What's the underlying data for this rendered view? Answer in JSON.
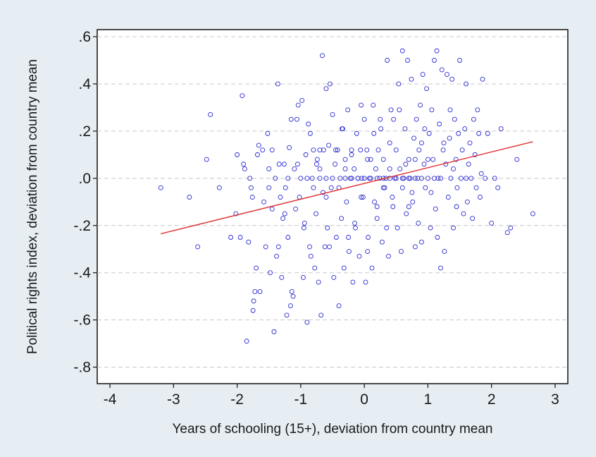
{
  "chart_data": {
    "type": "scatter",
    "title": "",
    "xlabel": "Years of schooling (15+), deviation from country mean",
    "ylabel": "Political rights index, deviation from country mean",
    "xlim": [
      -4.2,
      3.2
    ],
    "ylim": [
      -0.87,
      0.63
    ],
    "xticks": [
      -4,
      -3,
      -2,
      -1,
      0,
      1,
      2,
      3
    ],
    "xtick_labels": [
      "-4",
      "-3",
      "-2",
      "-1",
      "0",
      "1",
      "2",
      "3"
    ],
    "yticks": [
      0.6,
      0.4,
      0.2,
      0.0,
      -0.2,
      -0.4,
      -0.6,
      -0.8
    ],
    "ytick_labels": [
      ".6",
      ".4",
      ".2",
      ".0",
      "-.2",
      "-.4",
      "-.6",
      "-.8"
    ],
    "grid": "horizontal dashed",
    "colors": {
      "points": "#2b2bd0",
      "fit_line": "#e03030",
      "background": "#e6eef3",
      "plot_area": "#ffffff"
    },
    "fit_line": {
      "x": [
        -3.2,
        2.65
      ],
      "y": [
        -0.235,
        0.155
      ]
    },
    "points": [
      [
        -3.2,
        -0.04
      ],
      [
        -2.75,
        -0.08
      ],
      [
        -2.62,
        -0.29
      ],
      [
        -2.48,
        0.08
      ],
      [
        -2.42,
        0.27
      ],
      [
        -2.28,
        -0.04
      ],
      [
        -2.1,
        -0.25
      ],
      [
        -2.02,
        -0.15
      ],
      [
        -2.0,
        0.1
      ],
      [
        -1.95,
        -0.25
      ],
      [
        -1.92,
        0.35
      ],
      [
        -1.9,
        0.06
      ],
      [
        -1.88,
        0.04
      ],
      [
        -1.85,
        -0.69
      ],
      [
        -1.82,
        -0.27
      ],
      [
        -1.8,
        0.0
      ],
      [
        -1.78,
        -0.04
      ],
      [
        -1.76,
        -0.08
      ],
      [
        -1.75,
        -0.56
      ],
      [
        -1.74,
        -0.52
      ],
      [
        -1.72,
        -0.48
      ],
      [
        -1.7,
        -0.38
      ],
      [
        -1.68,
        0.1
      ],
      [
        -1.66,
        0.14
      ],
      [
        -1.64,
        -0.48
      ],
      [
        -1.6,
        0.12
      ],
      [
        -1.58,
        -0.1
      ],
      [
        -1.55,
        -0.29
      ],
      [
        -1.52,
        0.19
      ],
      [
        -1.5,
        0.04
      ],
      [
        -1.48,
        -0.4
      ],
      [
        -1.45,
        -0.13
      ],
      [
        -1.42,
        -0.65
      ],
      [
        -1.4,
        0.0
      ],
      [
        -1.38,
        -0.33
      ],
      [
        -1.36,
        0.4
      ],
      [
        -1.34,
        0.06
      ],
      [
        -1.32,
        -0.08
      ],
      [
        -1.3,
        -0.42
      ],
      [
        -1.28,
        -0.17
      ],
      [
        -1.26,
        0.06
      ],
      [
        -1.24,
        -0.04
      ],
      [
        -1.22,
        -0.58
      ],
      [
        -1.2,
        -0.25
      ],
      [
        -1.18,
        0.13
      ],
      [
        -1.16,
        -0.54
      ],
      [
        -1.14,
        -0.48
      ],
      [
        -1.12,
        -0.5
      ],
      [
        -1.1,
        0.04
      ],
      [
        -1.08,
        -0.13
      ],
      [
        -1.06,
        0.25
      ],
      [
        -1.04,
        0.31
      ],
      [
        -1.02,
        -0.08
      ],
      [
        -1.0,
        0.0
      ],
      [
        -0.98,
        0.33
      ],
      [
        -0.96,
        -0.42
      ],
      [
        -0.94,
        -0.19
      ],
      [
        -0.92,
        0.1
      ],
      [
        -0.9,
        -0.61
      ],
      [
        -0.88,
        0.23
      ],
      [
        -0.86,
        -0.29
      ],
      [
        -0.84,
        -0.33
      ],
      [
        -0.82,
        0.0
      ],
      [
        -0.8,
        0.12
      ],
      [
        -0.78,
        -0.38
      ],
      [
        -0.76,
        -0.15
      ],
      [
        -0.74,
        0.08
      ],
      [
        -0.72,
        -0.44
      ],
      [
        -0.7,
        0.04
      ],
      [
        -0.68,
        -0.58
      ],
      [
        -0.66,
        0.52
      ],
      [
        -0.64,
        0.12
      ],
      [
        -0.62,
        -0.29
      ],
      [
        -0.6,
        0.38
      ],
      [
        -0.58,
        -0.21
      ],
      [
        -0.56,
        0.14
      ],
      [
        -0.54,
        0.4
      ],
      [
        -0.52,
        -0.04
      ],
      [
        -0.5,
        0.27
      ],
      [
        -0.48,
        -0.42
      ],
      [
        -0.46,
        0.06
      ],
      [
        -0.44,
        -0.25
      ],
      [
        -0.42,
        0.12
      ],
      [
        -0.4,
        -0.54
      ],
      [
        -0.38,
        0.0
      ],
      [
        -0.36,
        -0.17
      ],
      [
        -0.34,
        0.21
      ],
      [
        -0.32,
        -0.38
      ],
      [
        -0.3,
        0.08
      ],
      [
        -0.28,
        -0.1
      ],
      [
        -0.26,
        0.29
      ],
      [
        -0.24,
        -0.31
      ],
      [
        -0.22,
        0.0
      ],
      [
        -0.2,
        0.1
      ],
      [
        -0.18,
        -0.44
      ],
      [
        -0.16,
        0.04
      ],
      [
        -0.14,
        -0.21
      ],
      [
        -0.12,
        0.19
      ],
      [
        -0.1,
        0.0
      ],
      [
        -0.08,
        -0.33
      ],
      [
        -0.06,
        0.12
      ],
      [
        -0.04,
        0.0
      ],
      [
        -0.02,
        -0.08
      ],
      [
        0.0,
        0.0
      ],
      [
        0.0,
        0.25
      ],
      [
        0.02,
        -0.44
      ],
      [
        0.04,
        0.12
      ],
      [
        0.06,
        -0.25
      ],
      [
        0.08,
        0.0
      ],
      [
        0.1,
        0.08
      ],
      [
        0.12,
        -0.38
      ],
      [
        0.14,
        0.31
      ],
      [
        0.16,
        -0.1
      ],
      [
        0.18,
        0.04
      ],
      [
        0.2,
        -0.17
      ],
      [
        0.22,
        0.12
      ],
      [
        0.24,
        0.0
      ],
      [
        0.26,
        0.21
      ],
      [
        0.28,
        -0.27
      ],
      [
        0.3,
        0.08
      ],
      [
        0.32,
        -0.04
      ],
      [
        0.34,
        0.0
      ],
      [
        0.36,
        0.5
      ],
      [
        0.38,
        -0.33
      ],
      [
        0.4,
        0.15
      ],
      [
        0.42,
        0.29
      ],
      [
        0.44,
        -0.08
      ],
      [
        0.46,
        0.25
      ],
      [
        0.48,
        0.0
      ],
      [
        0.5,
        0.12
      ],
      [
        0.52,
        -0.21
      ],
      [
        0.54,
        0.4
      ],
      [
        0.56,
        0.04
      ],
      [
        0.58,
        -0.31
      ],
      [
        0.6,
        0.54
      ],
      [
        0.62,
        0.0
      ],
      [
        0.64,
        0.21
      ],
      [
        0.66,
        -0.15
      ],
      [
        0.68,
        0.5
      ],
      [
        0.7,
        0.08
      ],
      [
        0.72,
        0.0
      ],
      [
        0.74,
        0.42
      ],
      [
        0.76,
        -0.1
      ],
      [
        0.78,
        0.17
      ],
      [
        0.8,
        -0.29
      ],
      [
        0.82,
        0.25
      ],
      [
        0.84,
        0.0
      ],
      [
        0.86,
        0.12
      ],
      [
        0.88,
        0.31
      ],
      [
        0.9,
        -0.27
      ],
      [
        0.92,
        0.44
      ],
      [
        0.94,
        0.06
      ],
      [
        0.96,
        -0.04
      ],
      [
        0.98,
        0.38
      ],
      [
        1.0,
        0.0
      ],
      [
        1.02,
        0.19
      ],
      [
        1.04,
        -0.21
      ],
      [
        1.06,
        0.29
      ],
      [
        1.08,
        0.08
      ],
      [
        1.1,
        0.5
      ],
      [
        1.12,
        -0.13
      ],
      [
        1.14,
        0.54
      ],
      [
        1.16,
        0.0
      ],
      [
        1.18,
        0.23
      ],
      [
        1.2,
        -0.38
      ],
      [
        1.22,
        0.46
      ],
      [
        1.24,
        0.12
      ],
      [
        1.26,
        -0.31
      ],
      [
        1.28,
        0.06
      ],
      [
        1.3,
        0.44
      ],
      [
        1.32,
        -0.08
      ],
      [
        1.34,
        0.17
      ],
      [
        1.36,
        0.0
      ],
      [
        1.38,
        0.42
      ],
      [
        1.4,
        -0.21
      ],
      [
        1.42,
        0.25
      ],
      [
        1.44,
        0.08
      ],
      [
        1.46,
        -0.04
      ],
      [
        1.48,
        0.19
      ],
      [
        1.5,
        0.5
      ],
      [
        1.52,
        0.0
      ],
      [
        1.54,
        0.12
      ],
      [
        1.56,
        -0.15
      ],
      [
        1.58,
        0.21
      ],
      [
        1.6,
        0.4
      ],
      [
        1.62,
        -0.1
      ],
      [
        1.64,
        0.06
      ],
      [
        1.66,
        0.15
      ],
      [
        1.68,
        0.0
      ],
      [
        1.7,
        -0.17
      ],
      [
        1.72,
        0.25
      ],
      [
        1.74,
        0.1
      ],
      [
        1.76,
        -0.04
      ],
      [
        1.78,
        0.29
      ],
      [
        1.8,
        0.19
      ],
      [
        1.82,
        -0.08
      ],
      [
        1.84,
        0.02
      ],
      [
        1.86,
        0.42
      ],
      [
        1.9,
        0.0
      ],
      [
        1.94,
        0.19
      ],
      [
        2.0,
        -0.19
      ],
      [
        2.05,
        0.0
      ],
      [
        2.1,
        -0.04
      ],
      [
        2.15,
        0.21
      ],
      [
        2.25,
        -0.23
      ],
      [
        2.3,
        -0.21
      ],
      [
        2.4,
        0.08
      ],
      [
        2.65,
        -0.15
      ],
      [
        -0.3,
        0.0
      ],
      [
        -0.2,
        0.0
      ],
      [
        -0.1,
        0.0
      ],
      [
        0.1,
        0.0
      ],
      [
        0.2,
        0.0
      ],
      [
        0.3,
        0.0
      ],
      [
        0.4,
        0.0
      ],
      [
        0.5,
        0.0
      ],
      [
        0.6,
        0.0
      ],
      [
        0.7,
        0.0
      ],
      [
        0.8,
        0.0
      ],
      [
        0.9,
        0.0
      ],
      [
        -0.5,
        0.0
      ],
      [
        -0.6,
        0.0
      ],
      [
        -0.7,
        0.0
      ],
      [
        -0.9,
        0.0
      ],
      [
        1.1,
        0.0
      ],
      [
        1.2,
        0.0
      ],
      [
        -0.3,
        0.04
      ],
      [
        0.3,
        -0.04
      ],
      [
        -0.4,
        -0.04
      ],
      [
        0.4,
        0.04
      ],
      [
        0.6,
        -0.04
      ],
      [
        -0.6,
        -0.08
      ],
      [
        0.8,
        0.08
      ],
      [
        1.0,
        0.08
      ],
      [
        -0.8,
        -0.04
      ],
      [
        -1.2,
        0.0
      ],
      [
        -1.5,
        -0.04
      ],
      [
        1.4,
        0.04
      ],
      [
        1.6,
        0.0
      ],
      [
        -0.2,
        0.12
      ],
      [
        0.2,
        -0.12
      ],
      [
        0.7,
        -0.12
      ],
      [
        -0.7,
        0.12
      ],
      [
        0.55,
        0.29
      ],
      [
        -0.55,
        -0.29
      ],
      [
        0.85,
        -0.19
      ],
      [
        -0.85,
        0.19
      ],
      [
        1.05,
        -0.06
      ],
      [
        -1.05,
        0.06
      ],
      [
        0.15,
        0.19
      ],
      [
        -0.15,
        -0.19
      ],
      [
        0.65,
        0.06
      ],
      [
        -0.65,
        -0.06
      ],
      [
        0.35,
        -0.21
      ],
      [
        -0.35,
        0.21
      ],
      [
        1.25,
        0.15
      ],
      [
        -1.25,
        -0.15
      ],
      [
        0.45,
        -0.12
      ],
      [
        -0.45,
        0.12
      ],
      [
        0.95,
        0.21
      ],
      [
        -0.95,
        -0.21
      ],
      [
        1.45,
        -0.12
      ],
      [
        -1.45,
        0.12
      ],
      [
        0.05,
        0.08
      ],
      [
        -0.05,
        -0.08
      ],
      [
        0.25,
        0.25
      ],
      [
        -0.25,
        -0.25
      ],
      [
        0.75,
        -0.06
      ],
      [
        -0.75,
        0.06
      ],
      [
        1.15,
        -0.25
      ],
      [
        -1.15,
        0.25
      ],
      [
        1.35,
        0.29
      ],
      [
        -1.35,
        -0.29
      ],
      [
        0.05,
        -0.31
      ],
      [
        -0.05,
        0.31
      ],
      [
        0.9,
        0.15
      ]
    ]
  }
}
